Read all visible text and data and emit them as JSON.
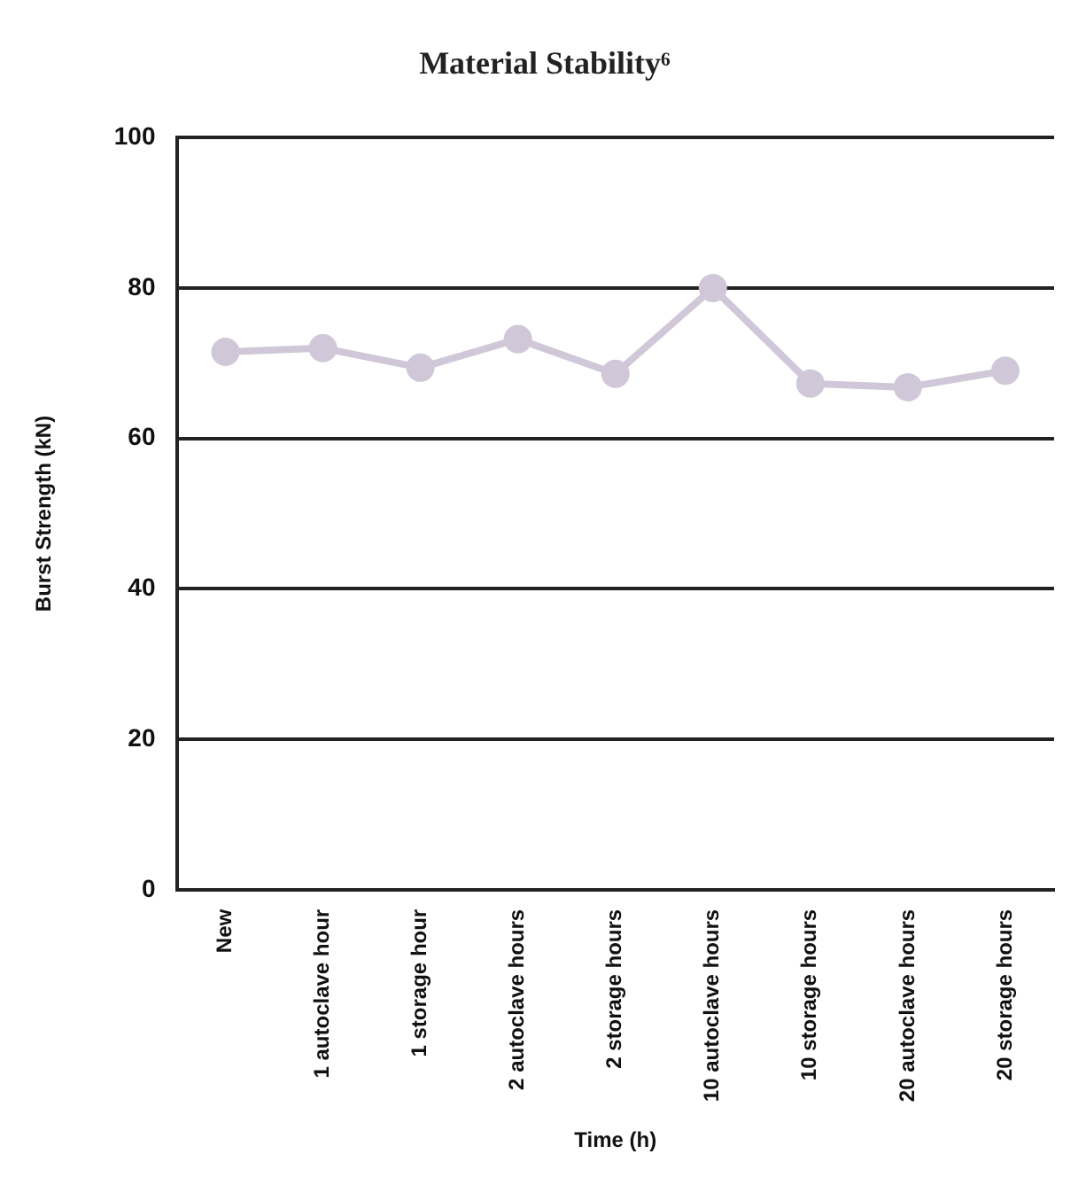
{
  "chart_data": {
    "type": "line",
    "title": "Material Stability⁶",
    "xlabel": "Time (h)",
    "ylabel": "Burst Strength (kN)",
    "categories": [
      "New",
      "1 autoclave hour",
      "1 storage hour",
      "2 autoclave hours",
      "2 storage hours",
      "10 autoclave hours",
      "10 storage hours",
      "20 autoclave hours",
      "20 storage hours"
    ],
    "series": [
      {
        "color": "#d0c8d8",
        "values": [
          71.5,
          72,
          69.4,
          73.2,
          68.6,
          80,
          67.3,
          66.8,
          69
        ]
      }
    ],
    "ylim": [
      0,
      100
    ],
    "yticks": [
      0,
      20,
      40,
      60,
      80,
      100
    ],
    "grid": "y",
    "legend": false,
    "marker": "circle",
    "line_style": "solid"
  }
}
